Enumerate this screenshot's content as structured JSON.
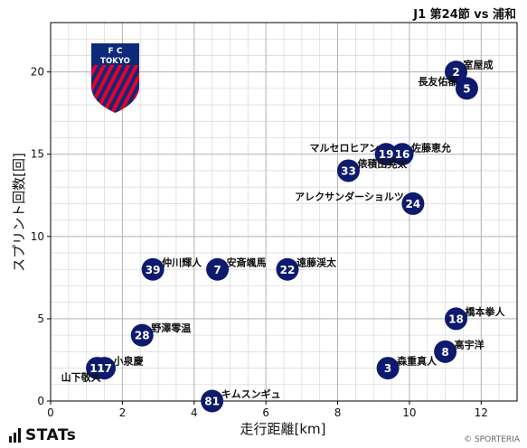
{
  "header": {
    "match_title": "J1 第24節 vs 浦和"
  },
  "badge": {
    "text_top": "F C",
    "text_main": "TOKYO",
    "colors": {
      "blue": "#0d2a7a",
      "red": "#e4002b"
    }
  },
  "brand": {
    "name": "STATs"
  },
  "footer": {
    "copyright": "© SPORTERIA"
  },
  "chart_data": {
    "type": "scatter",
    "xlabel": "走行距離[km]",
    "ylabel": "スプリント回数[回]",
    "xlim": [
      0,
      13
    ],
    "ylim": [
      0,
      23
    ],
    "xticks": [
      0,
      2,
      4,
      6,
      8,
      10,
      12
    ],
    "yticks": [
      0,
      5,
      10,
      15,
      20
    ],
    "grid": true,
    "marker_color": "#0d1a6e",
    "points": [
      {
        "number": "2",
        "name": "室屋成",
        "x": 11.3,
        "y": 20
      },
      {
        "number": "5",
        "name": "長友佑都",
        "x": 11.6,
        "y": 19
      },
      {
        "number": "19",
        "name": "マルセロヒアン",
        "x": 9.35,
        "y": 15
      },
      {
        "number": "16",
        "name": "佐藤恵允",
        "x": 9.8,
        "y": 15
      },
      {
        "number": "33",
        "name": "俵積田晃太",
        "x": 8.3,
        "y": 14
      },
      {
        "number": "24",
        "name": "アレクサンダーショルツ",
        "x": 10.1,
        "y": 12
      },
      {
        "number": "39",
        "name": "仲川輝人",
        "x": 2.85,
        "y": 8
      },
      {
        "number": "7",
        "name": "安斎颯馬",
        "x": 4.65,
        "y": 8
      },
      {
        "number": "22",
        "name": "遠藤渓太",
        "x": 6.6,
        "y": 8
      },
      {
        "number": "28",
        "name": "野澤零温",
        "x": 2.55,
        "y": 4
      },
      {
        "number": "18",
        "name": "橋本拳人",
        "x": 11.3,
        "y": 5
      },
      {
        "number": "8",
        "name": "高宇洋",
        "x": 11.0,
        "y": 3
      },
      {
        "number": "3",
        "name": "森重真人",
        "x": 9.4,
        "y": 2
      },
      {
        "number": "11",
        "name": "山下敬大",
        "x": 1.3,
        "y": 2
      },
      {
        "number": "17",
        "name": "小泉慶",
        "x": 1.5,
        "y": 2
      },
      {
        "number": "81",
        "name": "キムスンギュ",
        "x": 4.5,
        "y": 0
      }
    ]
  }
}
